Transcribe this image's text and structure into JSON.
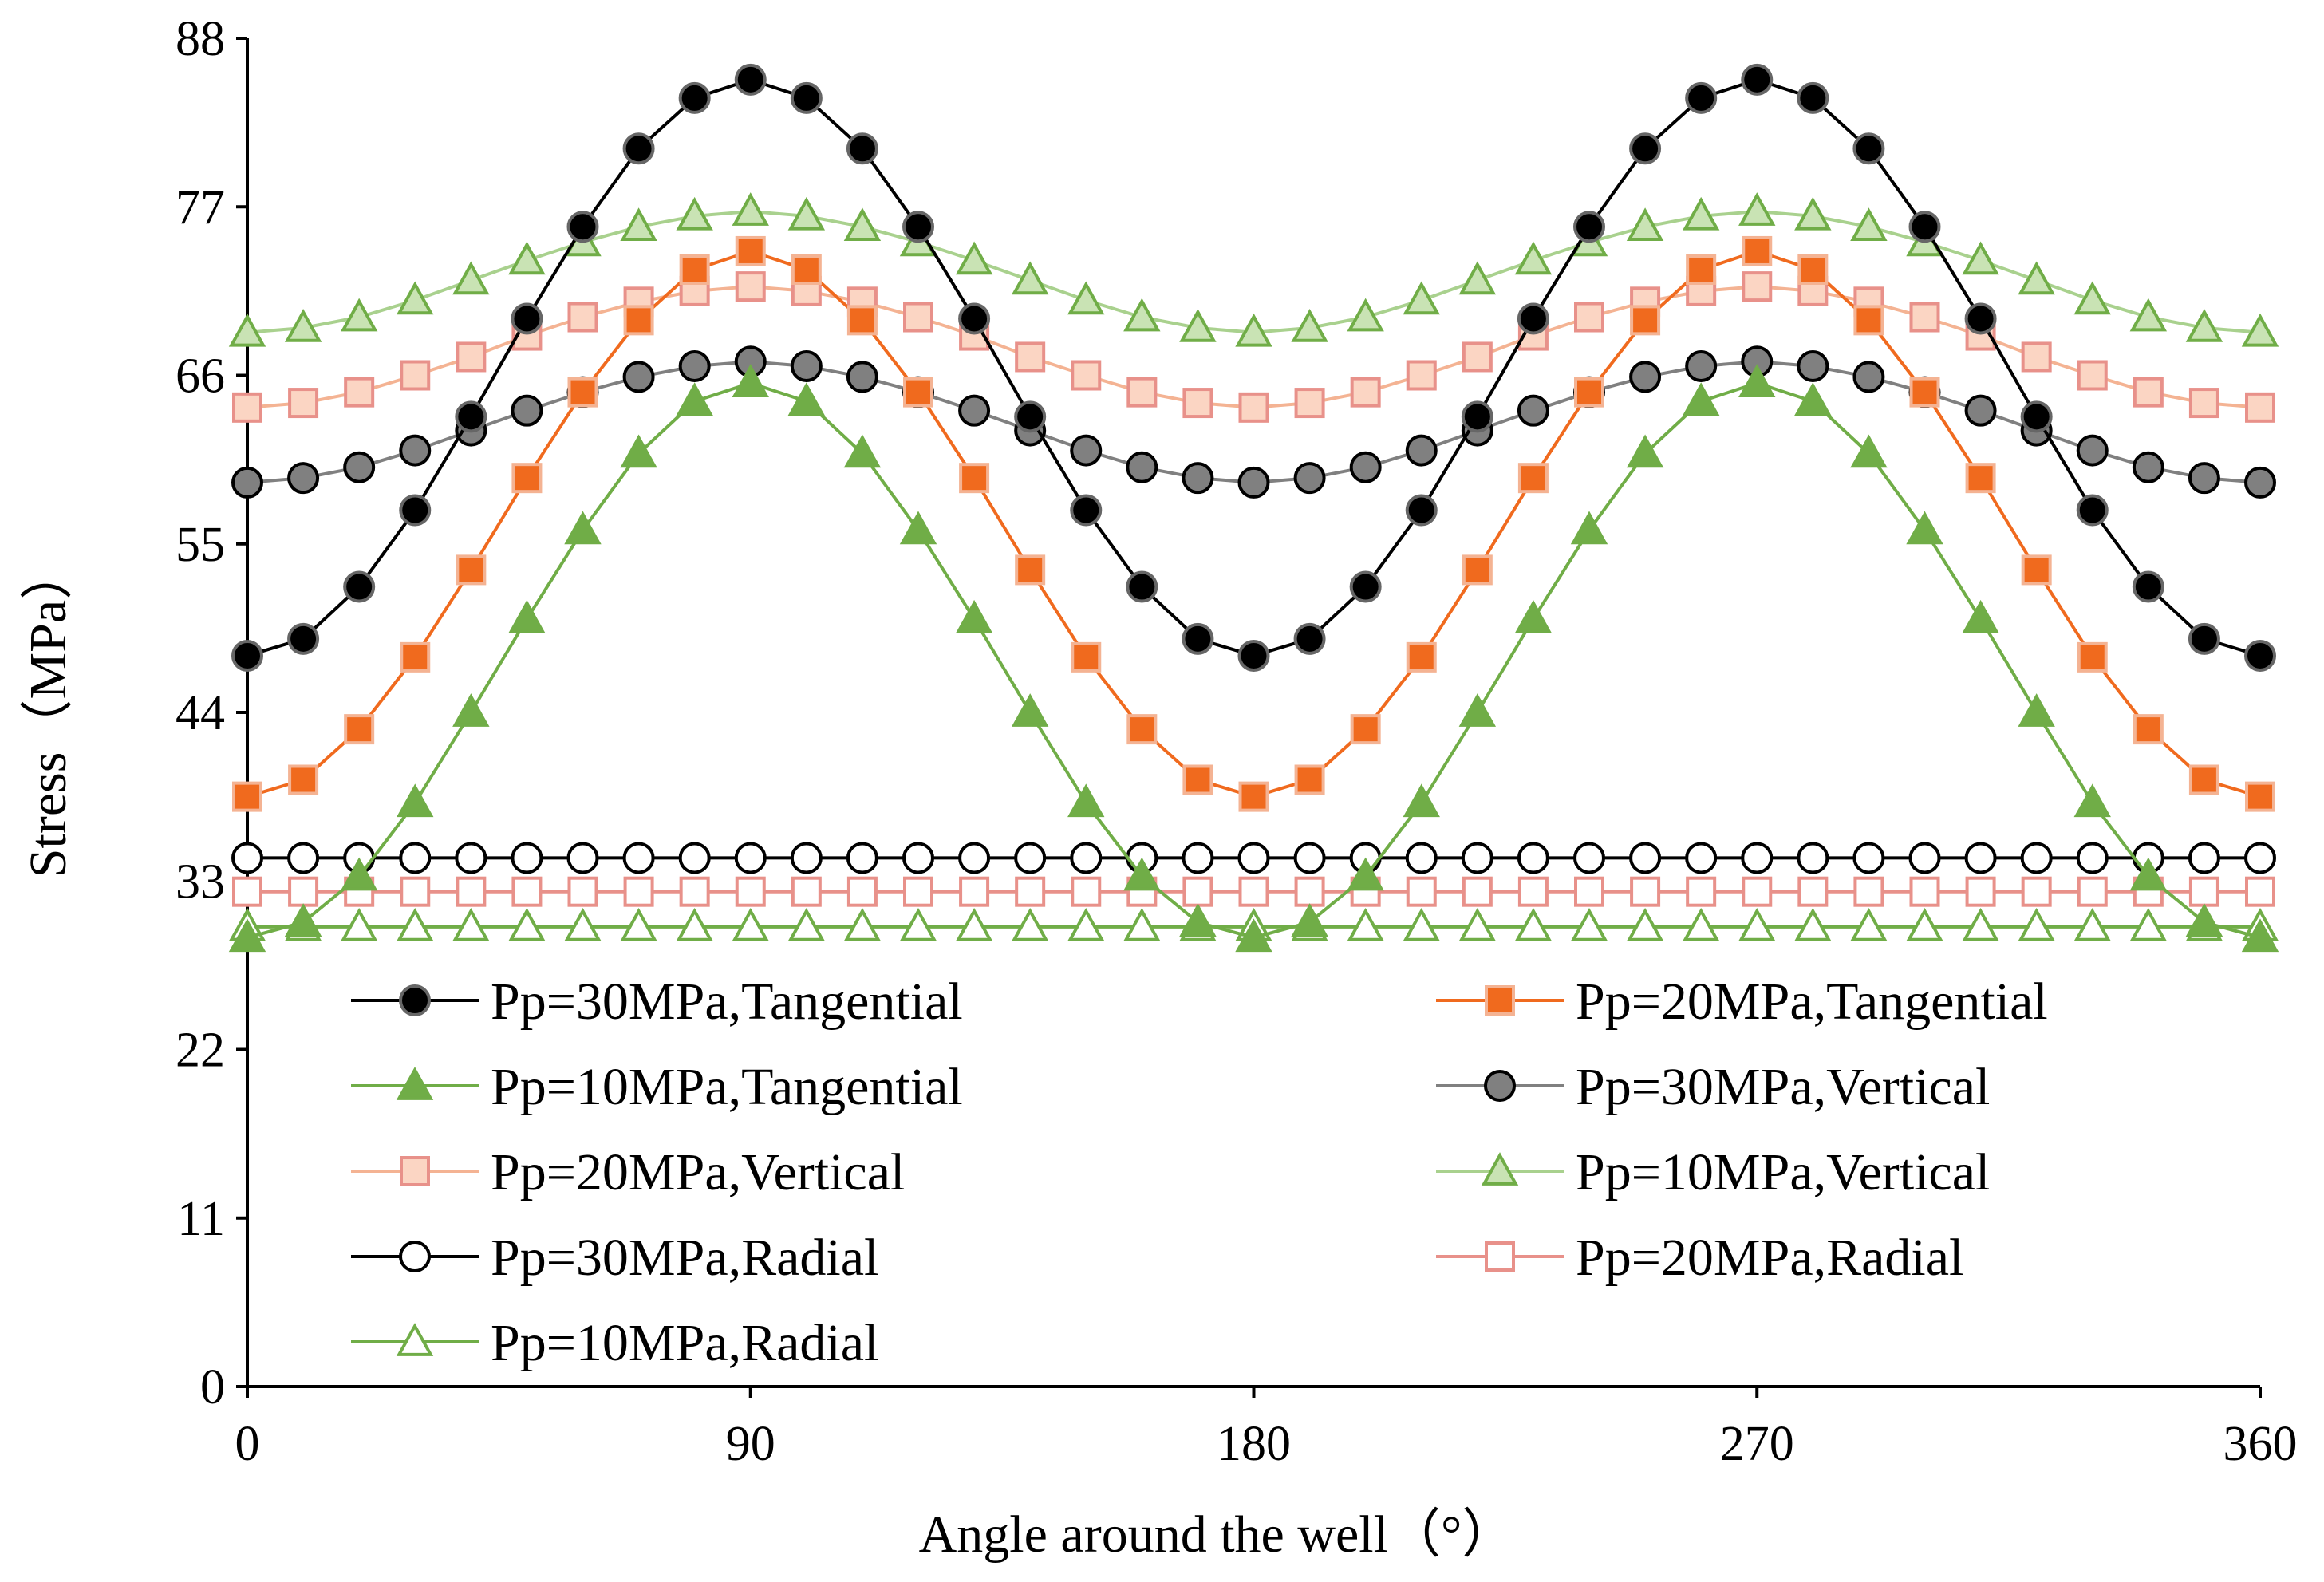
{
  "chart_data": {
    "type": "line",
    "title": "",
    "xlabel": "Angle around the well（°）",
    "ylabel": "Stress（MPa）",
    "xlim": [
      0,
      360
    ],
    "ylim": [
      0,
      88
    ],
    "xticks": [
      0,
      90,
      180,
      270,
      360
    ],
    "yticks": [
      0,
      11,
      22,
      33,
      44,
      55,
      66,
      77,
      88
    ],
    "x": [
      0,
      10,
      20,
      30,
      40,
      50,
      60,
      70,
      80,
      90,
      100,
      110,
      120,
      130,
      140,
      150,
      160,
      170,
      180,
      190,
      200,
      210,
      220,
      230,
      240,
      250,
      260,
      270,
      280,
      290,
      300,
      310,
      320,
      330,
      340,
      350,
      360
    ],
    "series": [
      {
        "name": "Pp=30MPa,Tangential",
        "color": "#000000",
        "marker": "circle-filled",
        "values": [
          47.7,
          48.8,
          52.2,
          57.2,
          63.3,
          69.7,
          75.7,
          80.8,
          84.1,
          85.3,
          84.1,
          80.8,
          75.7,
          69.7,
          63.3,
          57.2,
          52.2,
          48.8,
          47.7,
          48.8,
          52.2,
          57.2,
          63.3,
          69.7,
          75.7,
          80.8,
          84.1,
          85.3,
          84.1,
          80.8,
          75.7,
          69.7,
          63.3,
          57.2,
          52.2,
          48.8,
          47.7
        ]
      },
      {
        "name": "Pp=20MPa,Tangential",
        "color": "#f06a1e",
        "marker": "square-filled",
        "values": [
          38.5,
          39.6,
          42.9,
          47.6,
          53.3,
          59.3,
          64.9,
          69.6,
          72.9,
          74.1,
          72.9,
          69.6,
          64.9,
          59.3,
          53.3,
          47.6,
          42.9,
          39.6,
          38.5,
          39.6,
          42.9,
          47.6,
          53.3,
          59.3,
          64.9,
          69.6,
          72.9,
          74.1,
          72.9,
          69.6,
          64.9,
          59.3,
          53.3,
          47.6,
          42.9,
          39.6,
          38.5
        ]
      },
      {
        "name": "Pp=10MPa,Tangential",
        "color": "#70ad47",
        "marker": "triangle-filled",
        "values": [
          29.3,
          30.3,
          33.3,
          38.1,
          44.0,
          50.1,
          55.9,
          60.9,
          64.3,
          65.5,
          64.3,
          60.9,
          55.9,
          50.1,
          44.0,
          38.1,
          33.3,
          30.3,
          29.3,
          30.3,
          33.3,
          38.1,
          44.0,
          50.1,
          55.9,
          60.9,
          64.3,
          65.5,
          64.3,
          60.9,
          55.9,
          50.1,
          44.0,
          38.1,
          33.3,
          30.3,
          29.3
        ]
      },
      {
        "name": "Pp=30MPa,Vertical",
        "color": "#808080",
        "marker": "circle-gray",
        "values": [
          59.0,
          59.3,
          60.0,
          61.1,
          62.4,
          63.7,
          64.9,
          65.9,
          66.6,
          66.9,
          66.6,
          65.9,
          64.9,
          63.7,
          62.4,
          61.1,
          60.0,
          59.3,
          59.0,
          59.3,
          60.0,
          61.1,
          62.4,
          63.7,
          64.9,
          65.9,
          66.6,
          66.9,
          66.6,
          65.9,
          64.9,
          63.7,
          62.4,
          61.1,
          60.0,
          59.3,
          59.0
        ]
      },
      {
        "name": "Pp=20MPa,Vertical",
        "color": "#f4b393",
        "marker": "square-light",
        "values": [
          63.9,
          64.2,
          64.9,
          66.0,
          67.2,
          68.6,
          69.8,
          70.8,
          71.5,
          71.8,
          71.5,
          70.8,
          69.8,
          68.6,
          67.2,
          66.0,
          64.9,
          64.2,
          63.9,
          64.2,
          64.9,
          66.0,
          67.2,
          68.6,
          69.8,
          70.8,
          71.5,
          71.8,
          71.5,
          70.8,
          69.8,
          68.6,
          67.2,
          66.0,
          64.9,
          64.2,
          63.9
        ]
      },
      {
        "name": "Pp=10MPa,Vertical",
        "color": "#a9d18e",
        "marker": "triangle-light",
        "values": [
          68.8,
          69.1,
          69.8,
          70.9,
          72.2,
          73.5,
          74.7,
          75.7,
          76.4,
          76.7,
          76.4,
          75.7,
          74.7,
          73.5,
          72.2,
          70.9,
          69.8,
          69.1,
          68.8,
          69.1,
          69.8,
          70.9,
          72.2,
          73.5,
          74.7,
          75.7,
          76.4,
          76.7,
          76.4,
          75.7,
          74.7,
          73.5,
          72.2,
          70.9,
          69.8,
          69.1,
          68.8
        ]
      },
      {
        "name": "Pp=30MPa,Radial",
        "color": "#000000",
        "marker": "circle-open",
        "values": [
          34.5,
          34.5,
          34.5,
          34.5,
          34.5,
          34.5,
          34.5,
          34.5,
          34.5,
          34.5,
          34.5,
          34.5,
          34.5,
          34.5,
          34.5,
          34.5,
          34.5,
          34.5,
          34.5,
          34.5,
          34.5,
          34.5,
          34.5,
          34.5,
          34.5,
          34.5,
          34.5,
          34.5,
          34.5,
          34.5,
          34.5,
          34.5,
          34.5,
          34.5,
          34.5,
          34.5,
          34.5
        ]
      },
      {
        "name": "Pp=20MPa,Radial",
        "color": "#e8918a",
        "marker": "square-open",
        "values": [
          32.3,
          32.3,
          32.3,
          32.3,
          32.3,
          32.3,
          32.3,
          32.3,
          32.3,
          32.3,
          32.3,
          32.3,
          32.3,
          32.3,
          32.3,
          32.3,
          32.3,
          32.3,
          32.3,
          32.3,
          32.3,
          32.3,
          32.3,
          32.3,
          32.3,
          32.3,
          32.3,
          32.3,
          32.3,
          32.3,
          32.3,
          32.3,
          32.3,
          32.3,
          32.3,
          32.3,
          32.3
        ]
      },
      {
        "name": "Pp=10MPa,Radial",
        "color": "#70ad47",
        "marker": "triangle-open",
        "values": [
          30.0,
          30.0,
          30.0,
          30.0,
          30.0,
          30.0,
          30.0,
          30.0,
          30.0,
          30.0,
          30.0,
          30.0,
          30.0,
          30.0,
          30.0,
          30.0,
          30.0,
          30.0,
          30.0,
          30.0,
          30.0,
          30.0,
          30.0,
          30.0,
          30.0,
          30.0,
          30.0,
          30.0,
          30.0,
          30.0,
          30.0,
          30.0,
          30.0,
          30.0,
          30.0,
          30.0,
          30.0
        ]
      }
    ],
    "legend": {
      "placement": "inside-bottom",
      "columns": 2
    }
  }
}
